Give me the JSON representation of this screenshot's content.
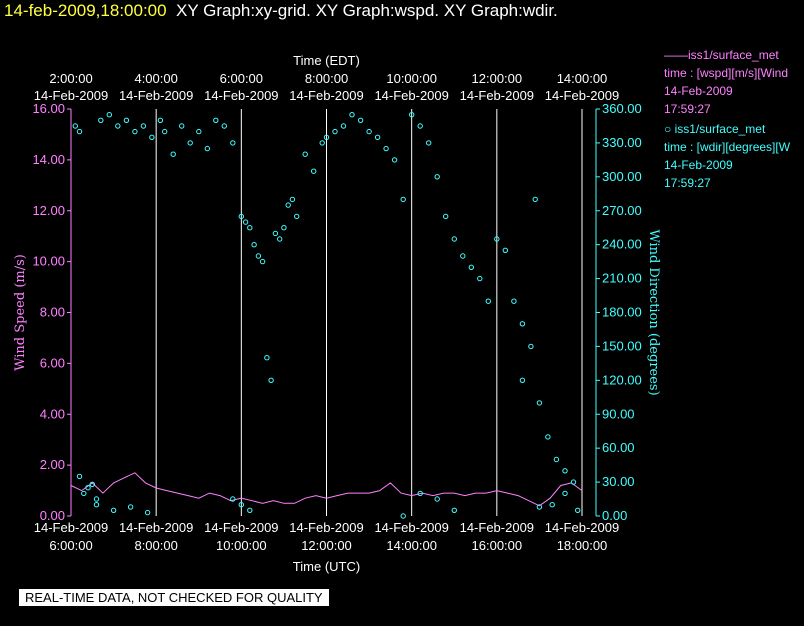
{
  "header": {
    "timestamp": "14-feb-2009,18:00:00",
    "graphs": "XY Graph:xy-grid.  XY Graph:wspd.  XY Graph:wdir."
  },
  "legend": [
    {
      "symbol": "——",
      "series": "iss1/surface_met",
      "axis": "time : [wspd][m/s][Wind",
      "date": "14-Feb-2009",
      "time": "17:59:27",
      "color": "#ff80ff"
    },
    {
      "symbol": "○",
      "series": "iss1/surface_met",
      "axis": "time : [wdir][degrees][W",
      "date": "14-Feb-2009",
      "time": "17:59:27",
      "color": "#40ffff"
    }
  ],
  "footer": {
    "warning": "REAL-TIME DATA, NOT CHECKED FOR QUALITY"
  },
  "chart_data": {
    "type": "line+scatter",
    "top_axis": {
      "label": "Time (EDT)",
      "ticks": [
        {
          "time": "2:00:00",
          "date": "14-Feb-2009"
        },
        {
          "time": "4:00:00",
          "date": "14-Feb-2009"
        },
        {
          "time": "6:00:00",
          "date": "14-Feb-2009"
        },
        {
          "time": "8:00:00",
          "date": "14-Feb-2009"
        },
        {
          "time": "10:00:00",
          "date": "14-Feb-2009"
        },
        {
          "time": "12:00:00",
          "date": "14-Feb-2009"
        },
        {
          "time": "14:00:00",
          "date": "14-Feb-2009"
        }
      ]
    },
    "bottom_axis": {
      "label": "Time (UTC)",
      "range_hours": [
        6,
        18
      ],
      "ticks": [
        {
          "time": "6:00:00",
          "date": "14-Feb-2009"
        },
        {
          "time": "8:00:00",
          "date": "14-Feb-2009"
        },
        {
          "time": "10:00:00",
          "date": "14-Feb-2009"
        },
        {
          "time": "12:00:00",
          "date": "14-Feb-2009"
        },
        {
          "time": "14:00:00",
          "date": "14-Feb-2009"
        },
        {
          "time": "16:00:00",
          "date": "14-Feb-2009"
        },
        {
          "time": "18:00:00",
          "date": "14-Feb-2009"
        }
      ]
    },
    "left_axis": {
      "label": "Wind Speed (m/s)",
      "range": [
        0,
        16
      ],
      "color": "#ff80ff",
      "ticks": [
        "0.00",
        "2.00",
        "4.00",
        "6.00",
        "8.00",
        "10.00",
        "12.00",
        "14.00",
        "16.00"
      ]
    },
    "right_axis": {
      "label": "Wind Direction (degrees)",
      "range": [
        0,
        360
      ],
      "color": "#40ffff",
      "ticks": [
        "0.00",
        "30.00",
        "60.00",
        "90.00",
        "120.00",
        "150.00",
        "180.00",
        "210.00",
        "240.00",
        "270.00",
        "300.00",
        "330.00",
        "360.00"
      ]
    },
    "grid": "vertical lines at each 2-hour tick",
    "series": [
      {
        "name": "wspd",
        "kind": "line",
        "color": "#ff80ff",
        "hour": [
          6.0,
          6.25,
          6.5,
          6.75,
          7.0,
          7.25,
          7.5,
          7.75,
          8.0,
          8.25,
          8.5,
          8.75,
          9.0,
          9.25,
          9.5,
          9.75,
          10.0,
          10.25,
          10.5,
          10.75,
          11.0,
          11.25,
          11.5,
          11.75,
          12.0,
          12.25,
          12.5,
          12.75,
          13.0,
          13.25,
          13.5,
          13.75,
          14.0,
          14.25,
          14.5,
          14.75,
          15.0,
          15.25,
          15.5,
          15.75,
          16.0,
          16.25,
          16.5,
          16.75,
          17.0,
          17.25,
          17.5,
          17.75,
          18.0
        ],
        "speed": [
          1.2,
          1.0,
          1.3,
          0.9,
          1.3,
          1.5,
          1.7,
          1.3,
          1.1,
          1.0,
          0.9,
          0.8,
          0.7,
          0.9,
          0.8,
          0.6,
          0.7,
          0.6,
          0.5,
          0.6,
          0.5,
          0.5,
          0.7,
          0.8,
          0.7,
          0.8,
          0.9,
          0.9,
          0.9,
          1.0,
          1.3,
          0.9,
          0.8,
          0.9,
          0.8,
          0.9,
          0.9,
          0.8,
          0.9,
          0.9,
          1.0,
          0.9,
          0.8,
          0.6,
          0.4,
          0.7,
          1.2,
          1.3,
          1.0
        ]
      },
      {
        "name": "wdir",
        "kind": "scatter",
        "color": "#40ffff",
        "hour": [
          6.1,
          6.2,
          6.3,
          6.5,
          6.6,
          6.7,
          6.9,
          7.1,
          7.3,
          7.5,
          7.7,
          7.9,
          8.1,
          8.2,
          8.4,
          8.6,
          8.8,
          9.0,
          9.2,
          9.4,
          9.6,
          9.8,
          10.0,
          10.1,
          10.2,
          10.3,
          10.4,
          10.5,
          10.6,
          10.7,
          10.8,
          10.9,
          11.0,
          11.1,
          11.2,
          11.3,
          11.5,
          11.7,
          11.9,
          12.0,
          12.2,
          12.4,
          12.6,
          12.8,
          13.0,
          13.2,
          13.4,
          13.6,
          13.8,
          14.0,
          14.2,
          14.4,
          14.6,
          14.8,
          15.0,
          15.2,
          15.4,
          15.6,
          15.8,
          16.0,
          16.2,
          16.4,
          16.6,
          16.8,
          17.0,
          17.2,
          17.4,
          17.6,
          17.8,
          6.2,
          6.4,
          6.6,
          7.0,
          7.4,
          7.8,
          9.8,
          10.0,
          10.2,
          13.8,
          14.2,
          14.6,
          15.0,
          17.0,
          17.3,
          17.6,
          17.9,
          16.6,
          16.9
        ],
        "direction": [
          345,
          340,
          20,
          28,
          15,
          350,
          355,
          345,
          350,
          340,
          345,
          335,
          350,
          340,
          320,
          345,
          330,
          340,
          325,
          350,
          345,
          330,
          265,
          260,
          255,
          240,
          230,
          225,
          140,
          120,
          250,
          245,
          255,
          275,
          280,
          265,
          320,
          305,
          330,
          335,
          340,
          345,
          355,
          350,
          340,
          335,
          325,
          315,
          280,
          355,
          345,
          330,
          300,
          265,
          245,
          230,
          220,
          210,
          190,
          245,
          235,
          190,
          170,
          150,
          100,
          70,
          50,
          40,
          30,
          35,
          25,
          10,
          5,
          8,
          3,
          15,
          10,
          5,
          0,
          20,
          15,
          5,
          8,
          10,
          20,
          5,
          120,
          280
        ]
      }
    ]
  }
}
